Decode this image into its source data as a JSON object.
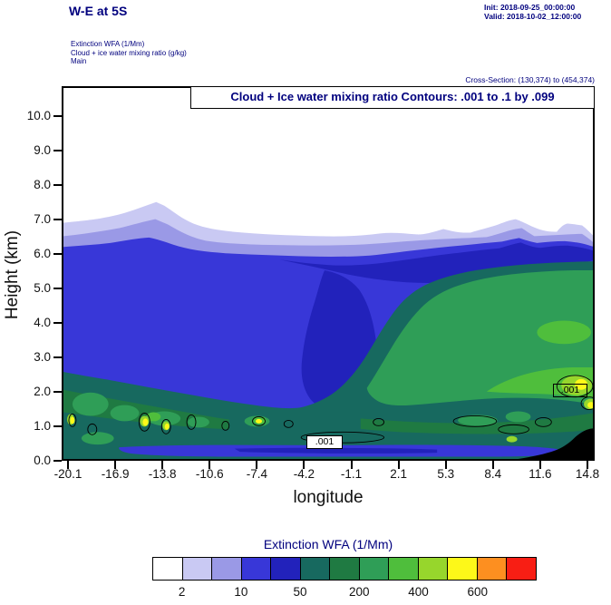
{
  "header": {
    "title": "W-E at 5S",
    "init": "Init: 2018-09-25_00:00:00",
    "valid": "Valid: 2018-10-02_12:00:00",
    "field_line_1": "Extinction WFA  (1/Mm)",
    "field_line_2": "Cloud + ice water mixing ratio   (g/kg)",
    "field_line_3": "Main",
    "cross_section": "Cross-Section: (130,374) to (454,374)"
  },
  "plot": {
    "contour_title": "Cloud + Ice water mixing ratio Contours: .001 to .1 by .099",
    "xlabel": "longitude",
    "ylabel": "Height (km)",
    "x_ticks": [
      "-20.1",
      "-16.9",
      "-13.8",
      "-10.6",
      "-7.4",
      "-4.2",
      "-1.1",
      "2.1",
      "5.3",
      "8.4",
      "11.6",
      "14.8"
    ],
    "y_ticks": [
      "0.0",
      "1.0",
      "2.0",
      "3.0",
      "4.0",
      "5.0",
      "6.0",
      "7.0",
      "8.0",
      "9.0",
      "10.0"
    ],
    "contour_labels": [
      ".001",
      ".001"
    ]
  },
  "colorbar": {
    "title": "Extinction WFA  (1/Mm)",
    "tick_labels": [
      "2",
      "10",
      "50",
      "200",
      "400",
      "600"
    ],
    "colors": [
      "#ffffff",
      "#c9c9f3",
      "#9a99e6",
      "#3837d8",
      "#2222bb",
      "#17695f",
      "#1f7a42",
      "#2f9e57",
      "#4fbe3c",
      "#97d62c",
      "#fdf819",
      "#fd8f20",
      "#f81e14"
    ]
  },
  "colors": {
    "heading_text": "#00007e",
    "axis_text": "#111111",
    "frame": "#000000",
    "terrain": "#000000"
  },
  "chart_data": {
    "type": "heatmap",
    "subtype": "filled-contour vertical cross-section",
    "title": "Cloud + Ice water mixing ratio Contours: .001 to .1 by .099",
    "xlabel": "longitude",
    "ylabel": "Height (km)",
    "xlim": [
      -20.1,
      14.8
    ],
    "ylim": [
      0.0,
      10.8
    ],
    "x_ticks": [
      -20.1,
      -16.9,
      -13.8,
      -10.6,
      -7.4,
      -4.2,
      -1.1,
      2.1,
      5.3,
      8.4,
      11.6,
      14.8
    ],
    "y_ticks": [
      0.0,
      1.0,
      2.0,
      3.0,
      4.0,
      5.0,
      6.0,
      7.0,
      8.0,
      9.0,
      10.0
    ],
    "grid": false,
    "fill_series": {
      "name": "Extinction WFA (1/Mm)",
      "labeled_levels": [
        2,
        10,
        50,
        200,
        400,
        600
      ],
      "palette": [
        "#ffffff",
        "#c9c9f3",
        "#9a99e6",
        "#3837d8",
        "#2222bb",
        "#17695f",
        "#1f7a42",
        "#2f9e57",
        "#4fbe3c",
        "#97d62c",
        "#fdf819",
        "#fd8f20",
        "#f81e12"
      ],
      "legend_position": "bottom"
    },
    "contour_series": {
      "name": "Cloud + ice water mixing ratio (g/kg)",
      "levels": [
        0.001,
        0.1
      ],
      "label_boxes_shown": [
        ".001",
        ".001"
      ]
    },
    "approx_features": [
      "cloud/extinction field fills 0 to ~6.5 km across the section; tops undulate 6.3-7.5 km",
      "largest extinction (green to yellow-green, 50-600 1/Mm) in lower-right half (1-5 km) and shallow 0.5-2 km pockets",
      "blue strip (2-50 1/Mm) along bottom 0-0.4 km; black terrain silhouette at lower-right up to ~0.9 km"
    ]
  }
}
